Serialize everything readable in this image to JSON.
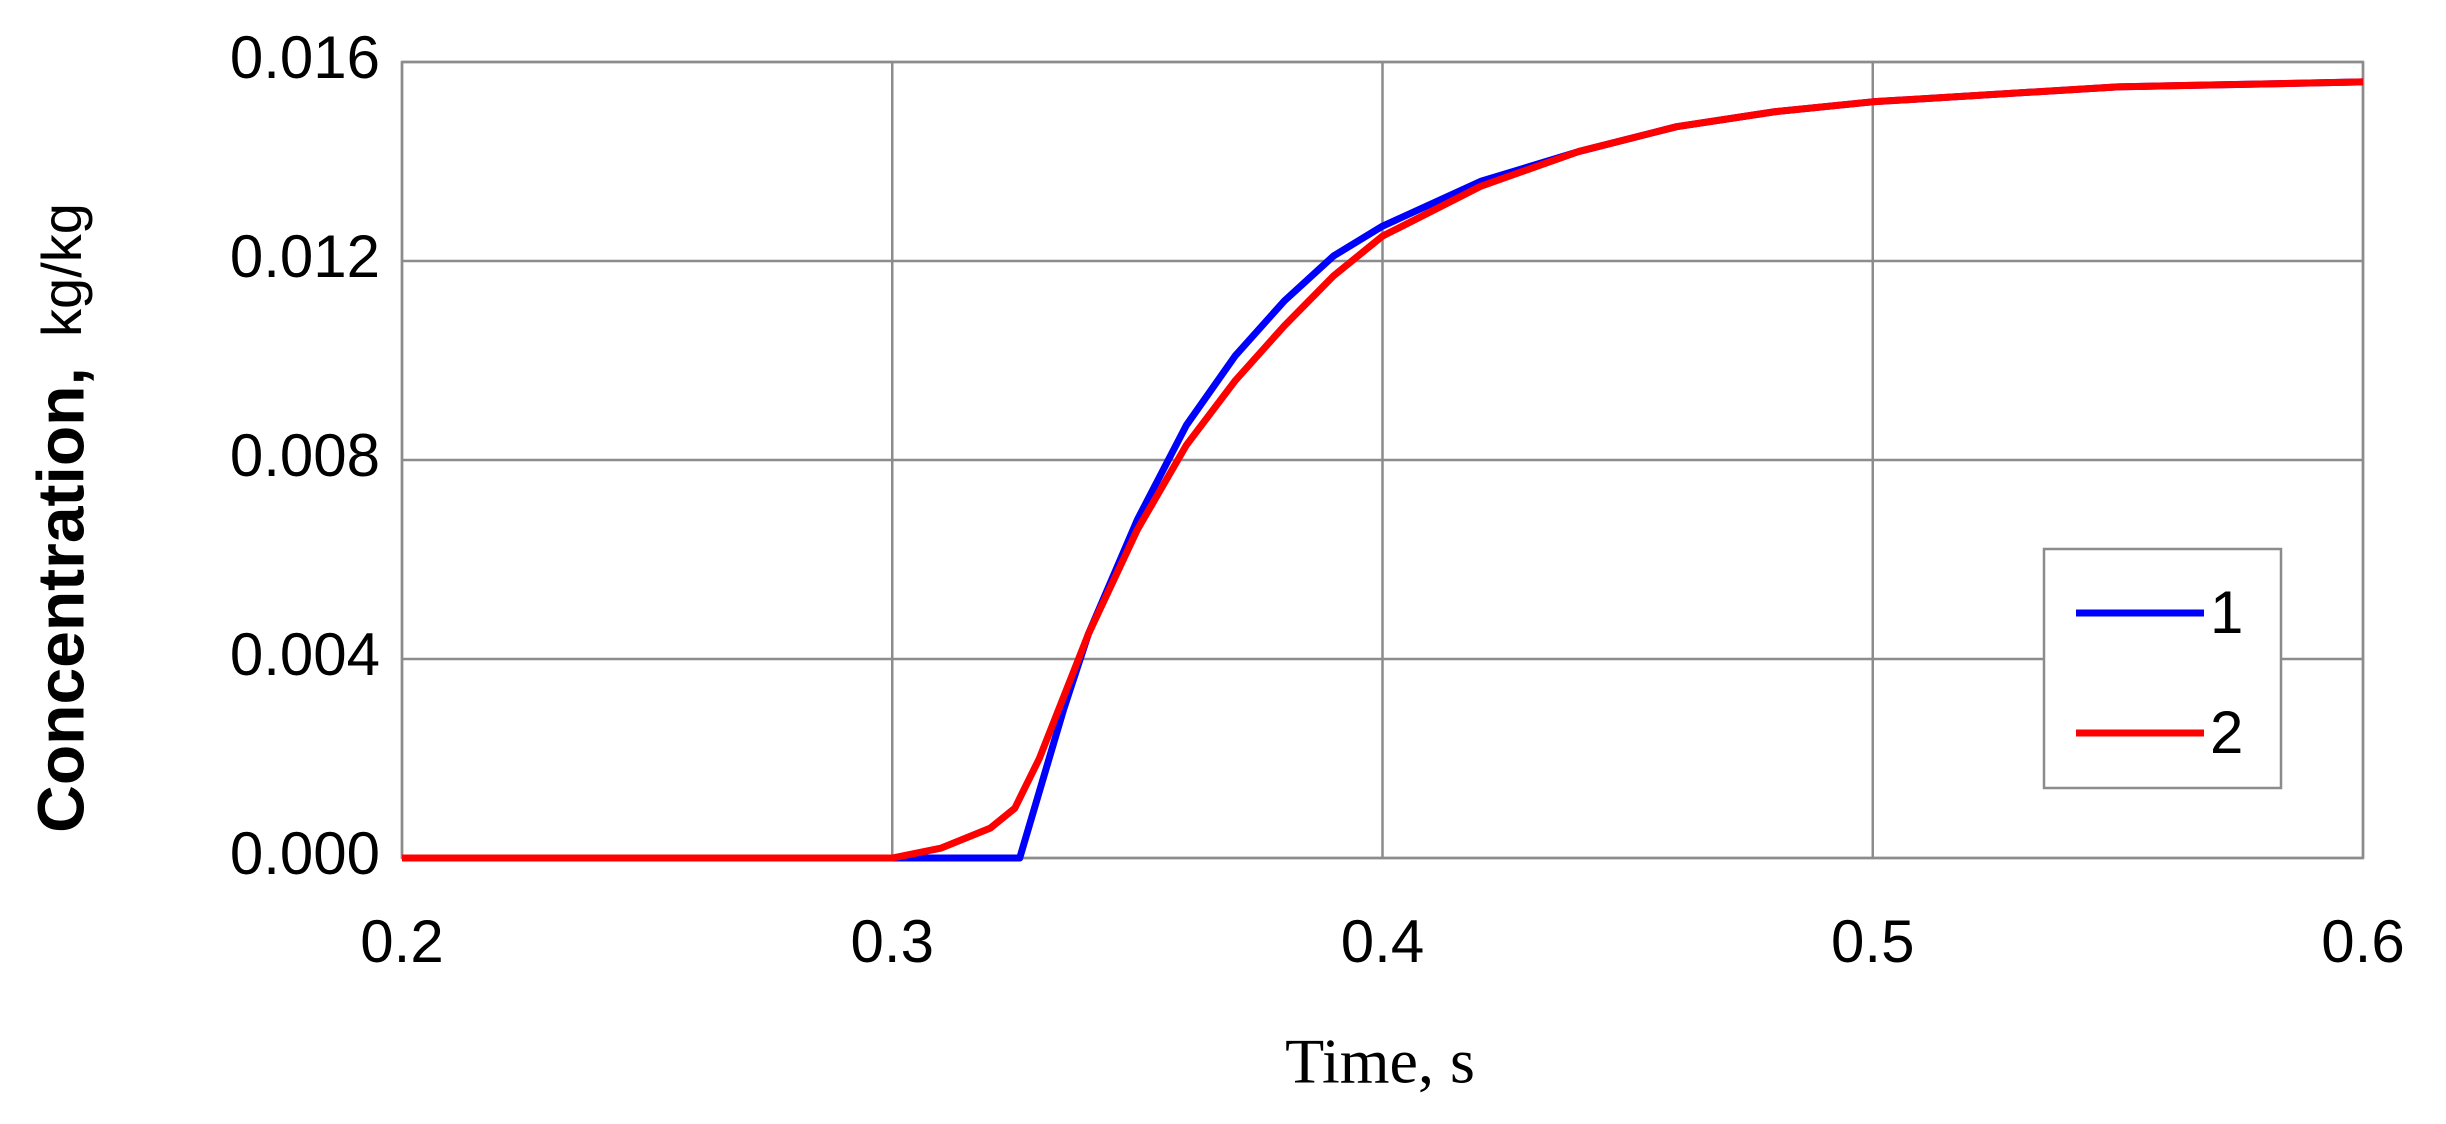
{
  "chart_data": {
    "type": "line",
    "xlabel": "Time, s",
    "ylabel": "Concentration,",
    "ylabel_unit": "kg/kg",
    "xlim": [
      0.2,
      0.6
    ],
    "xticks": [
      0.2,
      0.3,
      0.4,
      0.5,
      0.6
    ],
    "ylim": [
      0,
      0.016
    ],
    "yticks": [
      {
        "value": 0,
        "label": "0.000"
      },
      {
        "value": 0.004,
        "label": "0.004"
      },
      {
        "value": 0.008,
        "label": "0.008"
      },
      {
        "value": 0.012,
        "label": "0.012"
      },
      {
        "value": 0.016,
        "label": "0.016"
      }
    ],
    "grid": true,
    "legend": "right",
    "series": [
      {
        "name": "1",
        "color": "#0000ff",
        "x": [
          0.2,
          0.25,
          0.3,
          0.31,
          0.32,
          0.326,
          0.335,
          0.34,
          0.35,
          0.36,
          0.37,
          0.38,
          0.39,
          0.4,
          0.42,
          0.44,
          0.46,
          0.48,
          0.5,
          0.55,
          0.6
        ],
        "values": [
          0,
          0,
          0,
          0,
          0,
          0,
          0.003,
          0.0045,
          0.0068,
          0.0087,
          0.0101,
          0.0112,
          0.0121,
          0.0127,
          0.0136,
          0.0142,
          0.0147,
          0.015,
          0.0152,
          0.0155,
          0.0156
        ]
      },
      {
        "name": "2",
        "color": "#ff0000",
        "x": [
          0.2,
          0.25,
          0.3,
          0.31,
          0.32,
          0.325,
          0.33,
          0.34,
          0.35,
          0.36,
          0.37,
          0.38,
          0.39,
          0.4,
          0.42,
          0.44,
          0.46,
          0.48,
          0.5,
          0.55,
          0.6
        ],
        "values": [
          0,
          0,
          0,
          0.0002,
          0.0006,
          0.001,
          0.002,
          0.0045,
          0.0066,
          0.0083,
          0.0096,
          0.0107,
          0.0117,
          0.0125,
          0.0135,
          0.0142,
          0.0147,
          0.015,
          0.0152,
          0.0155,
          0.0156
        ]
      }
    ]
  }
}
